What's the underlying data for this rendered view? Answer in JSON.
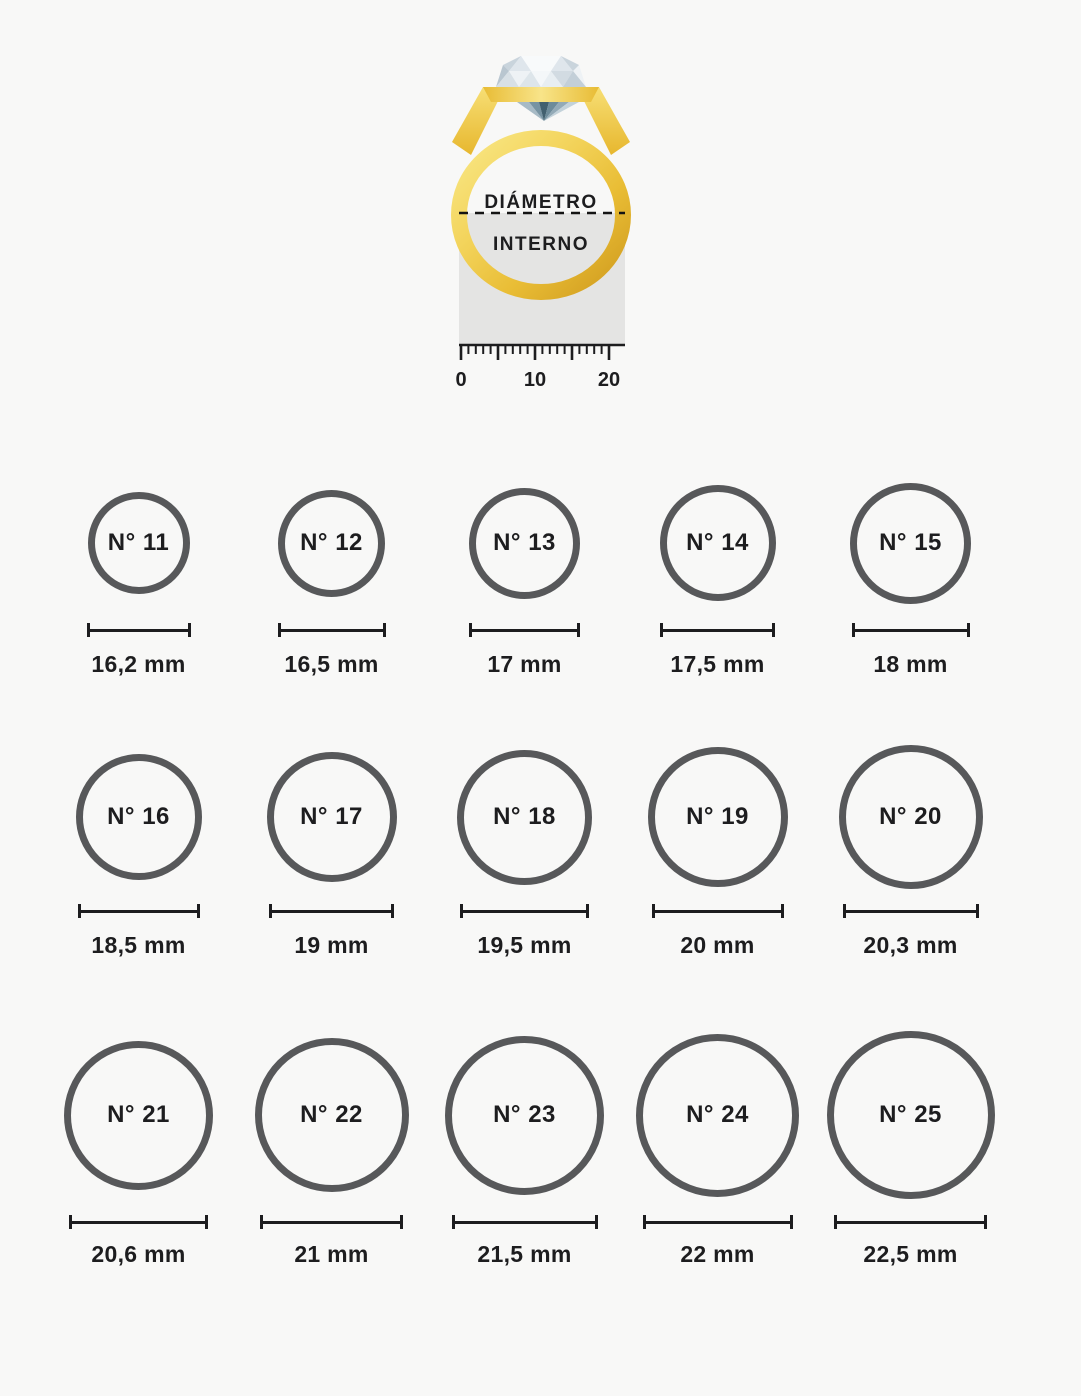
{
  "figure": {
    "diameter_label_line1": "DIÁMETRO",
    "diameter_label_line2": "INTERNO",
    "ruler": {
      "labels": [
        "0",
        "10",
        "20"
      ]
    }
  },
  "sizes": [
    {
      "label": "N° 11",
      "diameter_mm": 16.2,
      "size_text": "16,2 mm"
    },
    {
      "label": "N° 12",
      "diameter_mm": 16.5,
      "size_text": "16,5 mm"
    },
    {
      "label": "N° 13",
      "diameter_mm": 17,
      "size_text": "17 mm"
    },
    {
      "label": "N° 14",
      "diameter_mm": 17.5,
      "size_text": "17,5 mm"
    },
    {
      "label": "N° 15",
      "diameter_mm": 18,
      "size_text": "18 mm"
    },
    {
      "label": "N° 16",
      "diameter_mm": 18.5,
      "size_text": "18,5 mm"
    },
    {
      "label": "N° 17",
      "diameter_mm": 19,
      "size_text": "19 mm"
    },
    {
      "label": "N° 18",
      "diameter_mm": 19.5,
      "size_text": "19,5 mm"
    },
    {
      "label": "N° 19",
      "diameter_mm": 20,
      "size_text": "20 mm"
    },
    {
      "label": "N° 20",
      "diameter_mm": 20.3,
      "size_text": "20,3 mm"
    },
    {
      "label": "N° 21",
      "diameter_mm": 20.6,
      "size_text": "20,6 mm"
    },
    {
      "label": "N° 22",
      "diameter_mm": 21,
      "size_text": "21 mm"
    },
    {
      "label": "N° 23",
      "diameter_mm": 21.5,
      "size_text": "21,5 mm"
    },
    {
      "label": "N° 24",
      "diameter_mm": 22,
      "size_text": "22 mm"
    },
    {
      "label": "N° 25",
      "diameter_mm": 22.5,
      "size_text": "22,5 mm"
    }
  ],
  "colors": {
    "background": "#f8f8f7",
    "circle_stroke": "#57585a",
    "text": "#1d1d1f",
    "inner_area_fill": "#e4e4e3",
    "gold": "#edc23c"
  }
}
